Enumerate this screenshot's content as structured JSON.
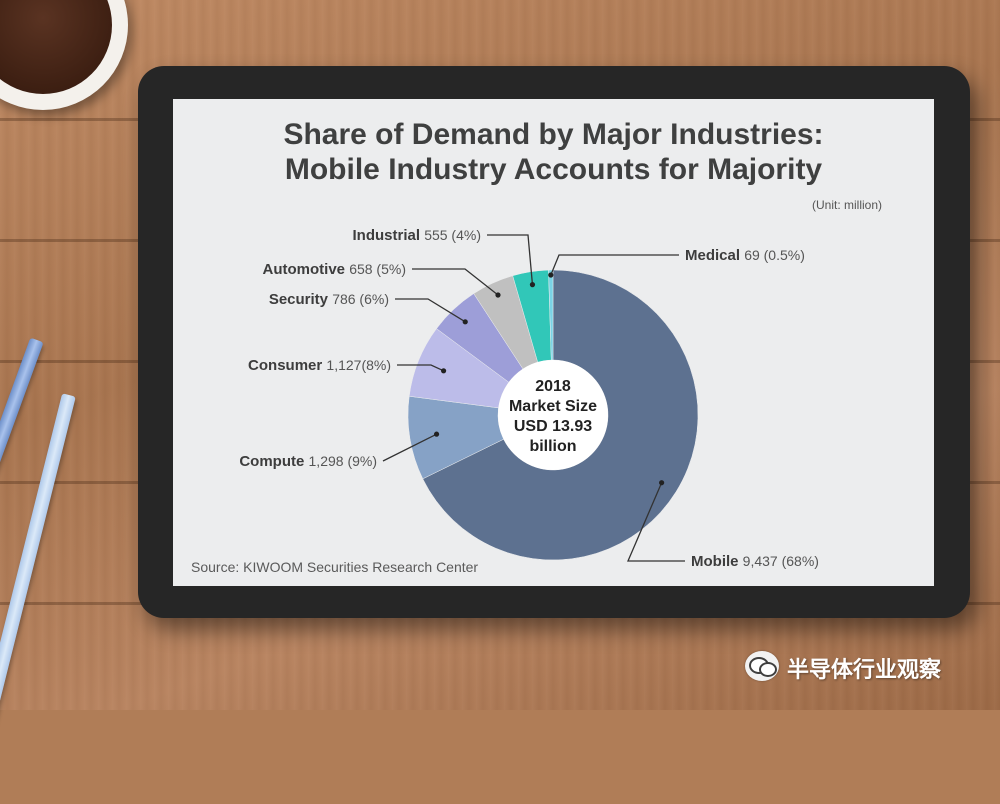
{
  "chart_data": {
    "type": "pie",
    "style": "donut",
    "title_line1": "Share of Demand by Major Industries:",
    "title_line2": "Mobile Industry Accounts for Majority",
    "unit_note": "(Unit: million)",
    "source": "Source: KIWOOM Securities Research Center",
    "center_text": [
      "2018",
      "Market Size",
      "USD 13.93",
      "billion"
    ],
    "slices": [
      {
        "name": "Mobile",
        "value": 9437,
        "value_text": "9,437 (68%)",
        "percent": 68,
        "color": "#5d7190"
      },
      {
        "name": "Compute",
        "value": 1298,
        "value_text": "1,298 (9%)",
        "percent": 9,
        "color": "#86a2c6"
      },
      {
        "name": "Consumer",
        "value": 1127,
        "value_text": "1,127(8%)",
        "percent": 8,
        "color": "#bcbce9"
      },
      {
        "name": "Security",
        "value": 786,
        "value_text": "786 (6%)",
        "percent": 6,
        "color": "#9d9ed8"
      },
      {
        "name": "Automotive",
        "value": 658,
        "value_text": "658 (5%)",
        "percent": 5,
        "color": "#c0c0c0"
      },
      {
        "name": "Industrial",
        "value": 555,
        "value_text": "555 (4%)",
        "percent": 4,
        "color": "#31c7b8"
      },
      {
        "name": "Medical",
        "value": 69,
        "value_text": "69 (0.5%)",
        "percent": 0.5,
        "color": "#7ad3e6"
      }
    ]
  },
  "watermark": {
    "icon": "wechat-icon",
    "text": "半导体行业观察"
  }
}
